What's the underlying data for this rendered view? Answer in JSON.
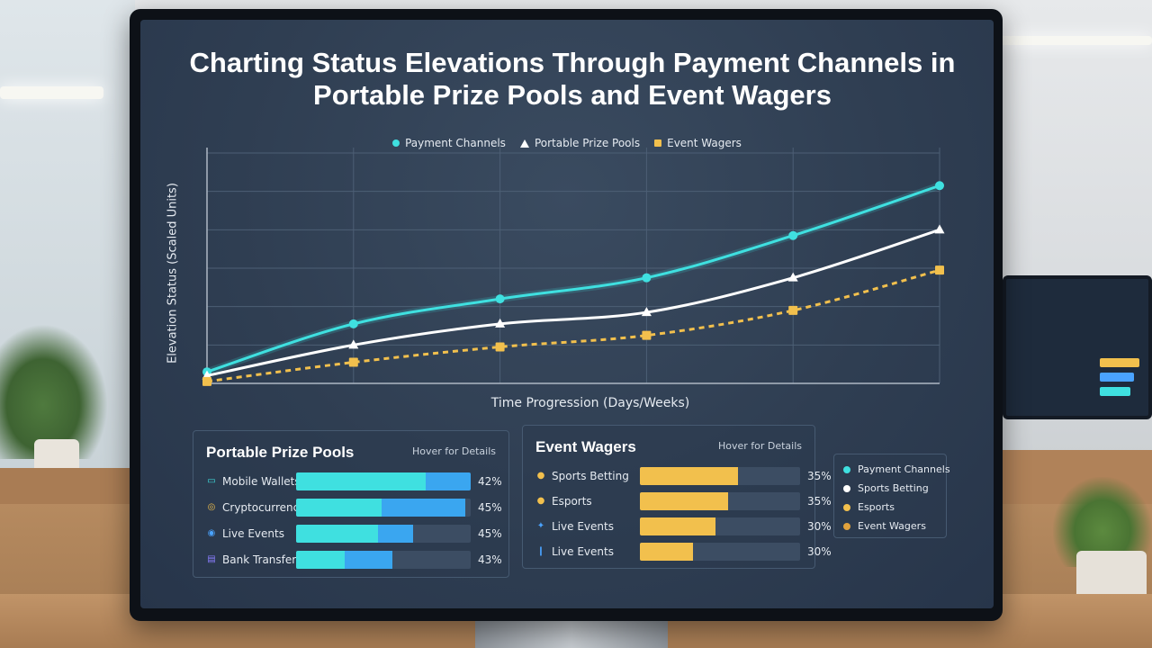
{
  "title": "Charting Status Elevations Through Payment Channels in Portable Prize Pools and Event Wagers",
  "legend_top": [
    {
      "label": "Payment Channels",
      "marker": "circle",
      "color": "#3fe0e0"
    },
    {
      "label": "Portable Prize Pools",
      "marker": "triangle",
      "color": "#ffffff"
    },
    {
      "label": "Event Wagers",
      "marker": "square",
      "color": "#f2c04d"
    }
  ],
  "chart_data": {
    "type": "line",
    "title": "Charting Status Elevations Through Payment Channels in Portable Prize Pools and Event Wagers",
    "xlabel": "Time Progression (Days/Weeks)",
    "ylabel": "Elevation Status (Scaled Units)",
    "x": [
      0,
      1,
      2,
      3,
      4,
      5
    ],
    "ylim": [
      0,
      6
    ],
    "grid": true,
    "legend_position": "top",
    "series": [
      {
        "name": "Payment Channels",
        "color": "#3fe0e0",
        "marker": "circle",
        "style": "solid",
        "values": [
          0.3,
          1.55,
          2.2,
          2.75,
          3.85,
          5.15
        ]
      },
      {
        "name": "Portable Prize Pools",
        "color": "#ffffff",
        "marker": "triangle",
        "style": "solid",
        "values": [
          0.2,
          1.0,
          1.55,
          1.85,
          2.75,
          4.0
        ]
      },
      {
        "name": "Event Wagers",
        "color": "#f2c04d",
        "marker": "square",
        "style": "dashed",
        "values": [
          0.05,
          0.55,
          0.95,
          1.25,
          1.9,
          2.95
        ]
      }
    ]
  },
  "panels": {
    "prize": {
      "title": "Portable Prize Pools",
      "hint": "Hover for Details",
      "rows": [
        {
          "label": "Mobile Wallets",
          "icon": "wallet-icon",
          "glyph": "▭",
          "icon_color": "#3fe0e0",
          "pct_text": "42%",
          "fill_a": 0.74,
          "fill_b": 0.26
        },
        {
          "label": "Cryptocurrency",
          "icon": "coin-icon",
          "glyph": "◎",
          "icon_color": "#f2c04d",
          "pct_text": "45%",
          "fill_a": 0.49,
          "fill_b": 0.48
        },
        {
          "label": "Live Events",
          "icon": "live-event-icon",
          "glyph": "◉",
          "icon_color": "#4aa3ff",
          "pct_text": "45%",
          "fill_a": 0.47,
          "fill_b": 0.2
        },
        {
          "label": "Bank Transfers",
          "icon": "bank-icon",
          "glyph": "▤",
          "icon_color": "#8a7dff",
          "pct_text": "43%",
          "fill_a": 0.28,
          "fill_b": 0.27
        }
      ]
    },
    "wagers": {
      "title": "Event Wagers",
      "hint": "Hover for Details",
      "rows": [
        {
          "label": "Sports Betting",
          "icon": "sports-ball-icon",
          "glyph": "●",
          "icon_color": "#f2c04d",
          "pct_text": "35%",
          "fill": 0.61
        },
        {
          "label": "Esports",
          "icon": "esports-icon",
          "glyph": "●",
          "icon_color": "#f2c04d",
          "pct_text": "35%",
          "fill": 0.55
        },
        {
          "label": "Live Events",
          "icon": "live-event-icon",
          "glyph": "✦",
          "icon_color": "#4aa3ff",
          "pct_text": "30%",
          "fill": 0.47
        },
        {
          "label": "Live Events",
          "icon": "lightning-icon",
          "glyph": "❙",
          "icon_color": "#4aa3ff",
          "pct_text": "30%",
          "fill": 0.33
        }
      ]
    }
  },
  "legend_box": [
    {
      "label": "Payment Channels",
      "color": "#3fe0e0"
    },
    {
      "label": "Sports Betting",
      "color": "#ffffff"
    },
    {
      "label": "Esports",
      "color": "#f2c04d"
    },
    {
      "label": "Event Wagers",
      "color": "#e0a23c"
    }
  ]
}
